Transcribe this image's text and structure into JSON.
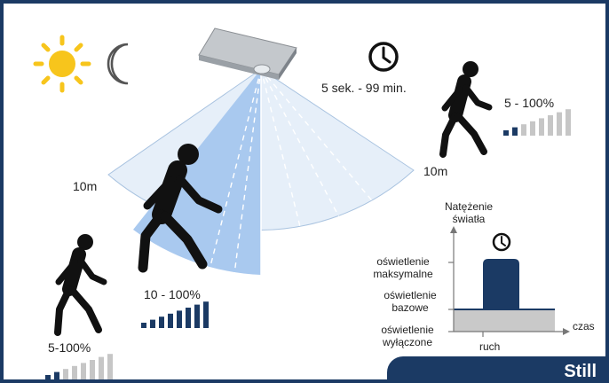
{
  "detection_zone": {
    "range_left": "10m",
    "range_right": "10m",
    "time_delay": "5 sek. - 99 min."
  },
  "persons": [
    {
      "name": "near-walker",
      "brightness": "10 - 100%",
      "bars_active": 8,
      "bars_total": 8
    },
    {
      "name": "far-walker-left",
      "brightness": "5-100%",
      "bars_active": 2,
      "bars_total": 8
    },
    {
      "name": "far-walker-right",
      "brightness": "5 - 100%",
      "bars_active": 2,
      "bars_total": 8
    }
  ],
  "graph": {
    "y_axis_title": "Natężenie światła",
    "level_max": "oświetlenie maksymalne",
    "level_base": "oświetlenie bazowe",
    "level_off": "oświetlenie wyłączone",
    "x_axis_label": "czas",
    "event_label": "ruch"
  },
  "mode": "Still",
  "colors": {
    "navy": "#1b3a64",
    "light_blue": "#a9c9ef",
    "pale_blue": "#e6eff9",
    "sun": "#f7c51c",
    "gray_bar": "#c6c6c6"
  },
  "icons": [
    "sun-icon",
    "moon-icon",
    "clock-icon",
    "sensor-lamp-icon",
    "walker-icon",
    "signal-bars-icon"
  ]
}
